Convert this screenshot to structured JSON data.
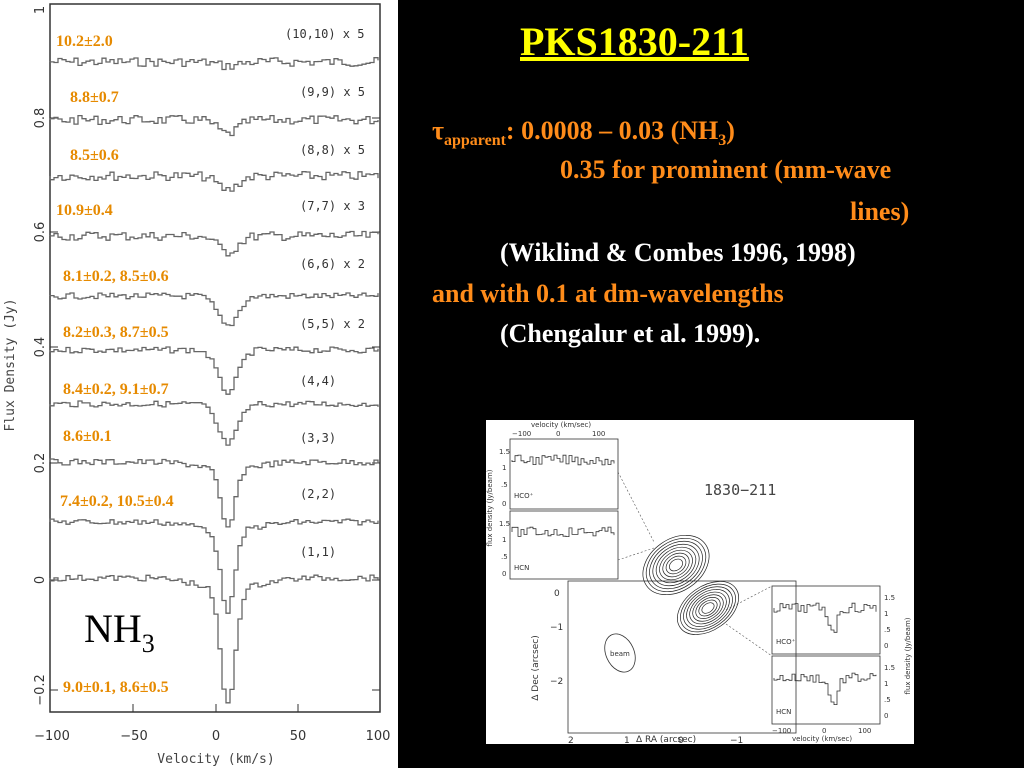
{
  "slide": {
    "title": "PKS1830-211",
    "tau_symbol": "τ",
    "tau_subscript": "apparent",
    "tau_value": ": 0.0008 – 0.03 (NH",
    "tau_nh3_sub": "3",
    "tau_close": ")",
    "line_prominent": "0.35 for prominent (mm-wave",
    "line_lines": "lines)",
    "citation_1": "(Wiklind & Combes 1996, 1998)",
    "line_dm": "and with 0.1 at dm-wavelengths",
    "citation_2": "(Chengalur et al. 1999)."
  },
  "spectra_plot": {
    "ylabel": "Flux Density (Jy)",
    "xlabel": "Velocity (km/s)",
    "x_ticks": [
      "−100",
      "−50",
      "0",
      "50",
      "100"
    ],
    "y_ticks": [
      "1",
      "0.8",
      "0.6",
      "0.4",
      "0.2",
      "0",
      "−0.2"
    ],
    "molecule": "NH",
    "molecule_sub": "3",
    "transitions": [
      {
        "label": "(10,10) x 5",
        "fit": "10.2±2.0"
      },
      {
        "label": "(9,9) x 5",
        "fit": "8.8±0.7"
      },
      {
        "label": "(8,8) x 5",
        "fit": "8.5±0.6"
      },
      {
        "label": "(7,7) x 3",
        "fit": "10.9±0.4"
      },
      {
        "label": "(6,6) x 2",
        "fit": "8.1±0.2, 8.5±0.6"
      },
      {
        "label": "(5,5) x 2",
        "fit": "8.2±0.3, 8.7±0.5"
      },
      {
        "label": "(4,4)",
        "fit": "8.4±0.2, 9.1±0.7"
      },
      {
        "label": "(3,3)",
        "fit": "8.6±0.1"
      },
      {
        "label": "(2,2)",
        "fit": "7.4±0.2, 10.5±0.4"
      },
      {
        "label": "(1,1)",
        "fit": "9.0±0.1,  8.6±0.5"
      }
    ]
  },
  "figure": {
    "source_name": "1830−211",
    "top_axis_label": "velocity (km/sec)",
    "top_axis_ticks": [
      "−100",
      "0",
      "100"
    ],
    "left_ylabel": "flux density (Jy/beam)",
    "left_panel_ticks": [
      "1.5",
      "1",
      ".5",
      "0"
    ],
    "left_panels": [
      "HCO⁺",
      "HCN"
    ],
    "right_panels": [
      "HCO⁺",
      "HCN"
    ],
    "right_ylabel": "flux density (Jy/beam)",
    "right_panel_ticks": [
      "1.5",
      "1",
      ".5",
      "0"
    ],
    "bottom_axis_label": "velocity (km/sec)",
    "bottom_axis_ticks": [
      "−100",
      "0",
      "100"
    ],
    "ra_label": "Δ RA (arcsec)",
    "dec_label": "Δ Dec (arcsec)",
    "ra_ticks": [
      "2",
      "1",
      "0",
      "−1"
    ],
    "dec_ticks": [
      "0",
      "−1",
      "−2"
    ],
    "beam_label": "beam"
  },
  "colors": {
    "title": "#ffff00",
    "orange": "#ff8c1a",
    "fit_label": "#e68a00",
    "background": "#000000"
  }
}
